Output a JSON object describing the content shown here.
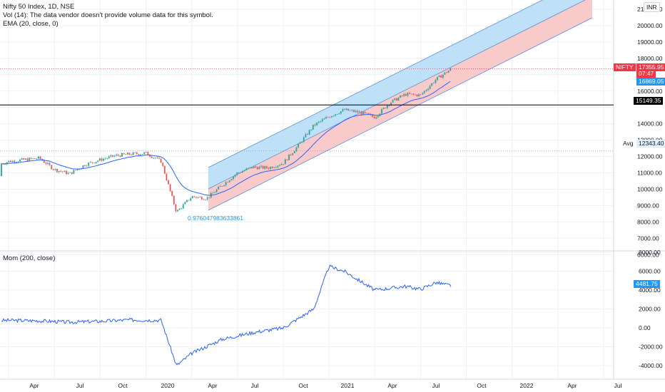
{
  "legend": {
    "symbol": "Nifty 50 Index, 1D, NSE",
    "vol": "Vol (14): The data vendor doesn't provide volume data for this symbol.",
    "ema": "EMA (20, close, 0)",
    "mom": "Mom (200, close)"
  },
  "currency": "INR",
  "price_axis": {
    "ticks": [
      "21000.00",
      "20000.00",
      "19000.00",
      "18000.00",
      "16000.00",
      "14000.00",
      "13000.00",
      "12000.00",
      "11000.00",
      "10000.00",
      "9000.00",
      "8000.00",
      "7000.00",
      "6000.00"
    ]
  },
  "mom_axis": {
    "ticks": [
      "8000.00",
      "6000.00",
      "4000.00",
      "2000.00",
      "0.00",
      "-2000.00",
      "-4000.00"
    ]
  },
  "time_axis": {
    "labels": [
      "Apr",
      "Jul",
      "Oct",
      "2020",
      "Apr",
      "Jul",
      "Oct",
      "2021",
      "Apr",
      "Jul",
      "Oct",
      "2022",
      "Apr",
      "Jul"
    ]
  },
  "tags": {
    "nifty_label": "NIFTY",
    "last_price": "17355.95",
    "countdown": "07:47",
    "ema_value": "16869.05",
    "hline_value": "15149.35",
    "avg_label": "Avg",
    "avg_value": "12343.40",
    "mom_value": "4481.75",
    "fib_text": "0.976047983633861"
  },
  "colors": {
    "up": "#26a69a",
    "down": "#ef5350",
    "ema": "#2962ff",
    "mom_line": "#2962ff",
    "channel_upper": "#b3dcf7",
    "channel_lower": "#f8c1c1",
    "channel_line": "#5b8fe0",
    "last_price_tag": "#f23645",
    "ema_tag": "#2196f3",
    "hline_tag": "#000000",
    "grid": "#eef0f4"
  },
  "chart_data": [
    {
      "type": "candlestick",
      "title": "Nifty 50 Index, 1D, NSE",
      "x_range": [
        "2019-02",
        "2022-08"
      ],
      "ylim": [
        5500,
        21500
      ],
      "scale": "linear",
      "series": [
        {
          "name": "Nifty 50 Index",
          "x": [
            "2019-02",
            "2019-03",
            "2019-04",
            "2019-05",
            "2019-06",
            "2019-07",
            "2019-08",
            "2019-09",
            "2019-10",
            "2019-11",
            "2019-12",
            "2020-01",
            "2020-02",
            "2020-03",
            "2020-04",
            "2020-05",
            "2020-06",
            "2020-07",
            "2020-08",
            "2020-09",
            "2020-10",
            "2020-11",
            "2020-12",
            "2021-01",
            "2021-02",
            "2021-03",
            "2021-04",
            "2021-05",
            "2021-06",
            "2021-07",
            "2021-08",
            "2021-09"
          ],
          "values": [
            10800,
            11400,
            11700,
            11800,
            11900,
            11200,
            10950,
            11500,
            11800,
            12050,
            12150,
            12200,
            11700,
            8600,
            9550,
            9450,
            10250,
            11000,
            11350,
            11300,
            11600,
            12700,
            13900,
            14450,
            14850,
            14700,
            14400,
            15300,
            15800,
            15750,
            16700,
            17356
          ]
        },
        {
          "name": "EMA (20, close, 0)",
          "values_note": "smoothed price, last value 16869.05"
        }
      ],
      "annotations": {
        "horizontal_line": 15149.35,
        "average_line": 12343.4,
        "last_price": 17355.95,
        "ema_last": 16869.05,
        "regression_channel_pearson": "0.976047983633861"
      },
      "grid": true
    },
    {
      "type": "line",
      "title": "Mom (200, close)",
      "ylim": [
        -5000,
        8000
      ],
      "series": [
        {
          "name": "Mom (200, close)",
          "x": [
            "2019-02",
            "2019-04",
            "2019-06",
            "2019-08",
            "2019-10",
            "2019-12",
            "2020-02",
            "2020-03",
            "2020-04",
            "2020-06",
            "2020-08",
            "2020-10",
            "2020-12",
            "2021-01",
            "2021-02",
            "2021-03",
            "2021-04",
            "2021-05",
            "2021-06",
            "2021-07",
            "2021-08",
            "2021-09"
          ],
          "values": [
            700,
            800,
            750,
            600,
            700,
            850,
            800,
            -4000,
            -2700,
            -1200,
            -500,
            0,
            2000,
            6500,
            6000,
            5000,
            4000,
            4200,
            4400,
            4100,
            4800,
            4481.75
          ]
        }
      ],
      "grid": true
    }
  ]
}
